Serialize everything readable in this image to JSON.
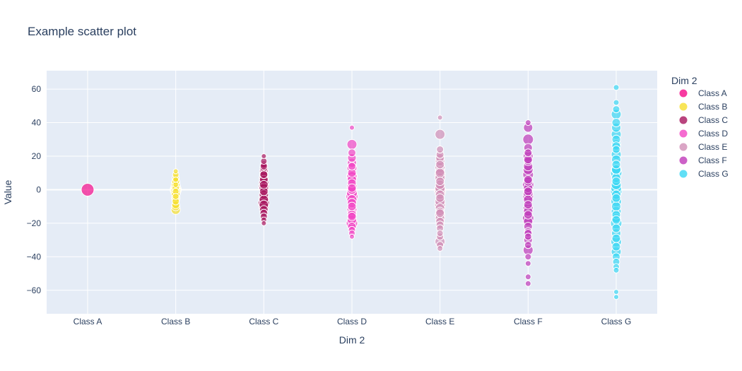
{
  "chart_data": {
    "type": "scatter",
    "title": "Example scatter plot",
    "xlabel": "Dim 2",
    "ylabel": "Value",
    "categories": [
      "Class A",
      "Class B",
      "Class C",
      "Class D",
      "Class E",
      "Class F",
      "Class G"
    ],
    "ylim": [
      -74,
      71
    ],
    "yticks": [
      {
        "value": 60,
        "label": "60"
      },
      {
        "value": 40,
        "label": "40"
      },
      {
        "value": 20,
        "label": "20"
      },
      {
        "value": 0,
        "label": "0"
      },
      {
        "value": -20,
        "label": "−20"
      },
      {
        "value": -40,
        "label": "−40"
      },
      {
        "value": -60,
        "label": "−60"
      }
    ],
    "grid": true,
    "background_color": "#e5ecf6",
    "legend": {
      "title": "Dim 2",
      "placement": "right"
    },
    "series": [
      {
        "name": "Class A",
        "color": "#f50a8a",
        "values": [
          0
        ],
        "sizes": [
          18
        ]
      },
      {
        "name": "Class B",
        "color": "#f6df2e",
        "values": [
          11,
          9,
          7,
          5,
          4,
          3,
          2,
          1,
          0,
          0,
          -1,
          -2,
          -3,
          -5,
          -6,
          -7,
          -9,
          -10,
          -12,
          1,
          -1,
          3,
          -4,
          6
        ],
        "sizes": [
          7,
          9,
          10,
          11,
          12,
          12,
          13,
          14,
          15,
          16,
          14,
          13,
          12,
          12,
          11,
          10,
          11,
          12,
          13,
          10,
          9,
          8,
          9,
          8
        ]
      },
      {
        "name": "Class C",
        "color": "#a8155e",
        "values": [
          20,
          17,
          15,
          13,
          11,
          9,
          7,
          6,
          4,
          2,
          1,
          -1,
          -3,
          -5,
          -6,
          -8,
          -10,
          -12,
          -14,
          -16,
          -18,
          -20,
          14,
          3,
          -9,
          9
        ],
        "sizes": [
          7,
          9,
          10,
          11,
          12,
          12,
          13,
          12,
          14,
          15,
          13,
          12,
          13,
          14,
          13,
          16,
          14,
          12,
          11,
          10,
          8,
          7,
          10,
          12,
          13,
          11
        ]
      },
      {
        "name": "Class D",
        "color": "#f246c4",
        "values": [
          37,
          27,
          22,
          19,
          16,
          13,
          10,
          8,
          6,
          4,
          2,
          0,
          -2,
          -4,
          -6,
          -8,
          -10,
          -12,
          -14,
          -16,
          -18,
          -20,
          -22,
          -24,
          -26,
          -28,
          14,
          1,
          -15,
          8
        ],
        "sizes": [
          7,
          14,
          11,
          12,
          13,
          14,
          12,
          15,
          13,
          12,
          14,
          13,
          15,
          17,
          14,
          13,
          12,
          14,
          13,
          12,
          13,
          16,
          12,
          10,
          9,
          7,
          11,
          12,
          13,
          14
        ]
      },
      {
        "name": "Class E",
        "color": "#d18fb7",
        "values": [
          43,
          33,
          24,
          21,
          19,
          17,
          15,
          13,
          11,
          9,
          7,
          5,
          3,
          1,
          -1,
          -3,
          -5,
          -7,
          -9,
          -11,
          -13,
          -15,
          -17,
          -19,
          -21,
          -23,
          -26,
          -28,
          -31,
          -33,
          -35,
          0,
          -14,
          10
        ],
        "sizes": [
          7,
          14,
          10,
          11,
          12,
          13,
          12,
          14,
          13,
          15,
          14,
          12,
          13,
          14,
          16,
          13,
          12,
          14,
          15,
          13,
          12,
          14,
          13,
          12,
          11,
          10,
          9,
          10,
          14,
          10,
          8,
          15,
          12,
          13
        ]
      },
      {
        "name": "Class F",
        "color": "#bf3ab9",
        "values": [
          40,
          37,
          30,
          25,
          22,
          20,
          17,
          14,
          12,
          9,
          6,
          3,
          1,
          -1,
          -4,
          -6,
          -9,
          -11,
          -13,
          -15,
          -17,
          -19,
          -22,
          -25,
          -28,
          -30,
          -33,
          -36,
          -40,
          -44,
          -52,
          -56,
          5,
          -2,
          18,
          -26
        ],
        "sizes": [
          8,
          13,
          15,
          12,
          11,
          14,
          12,
          13,
          14,
          15,
          12,
          16,
          13,
          12,
          15,
          13,
          12,
          14,
          13,
          12,
          16,
          13,
          12,
          11,
          10,
          12,
          10,
          14,
          9,
          8,
          8,
          8,
          13,
          14,
          12,
          11
        ]
      },
      {
        "name": "Class G",
        "color": "#3ad7f4",
        "values": [
          61,
          52,
          48,
          45,
          40,
          37,
          33,
          30,
          27,
          24,
          21,
          18,
          15,
          12,
          10,
          7,
          5,
          3,
          1,
          -1,
          -3,
          -5,
          -7,
          -10,
          -13,
          -15,
          -17,
          -20,
          -23,
          -26,
          -29,
          -31,
          -34,
          -37,
          -40,
          -43,
          -46,
          -48,
          -61,
          -64,
          26,
          12,
          -18
        ],
        "sizes": [
          8,
          8,
          10,
          14,
          12,
          13,
          14,
          12,
          13,
          11,
          14,
          13,
          12,
          14,
          16,
          13,
          12,
          14,
          15,
          16,
          13,
          12,
          15,
          13,
          14,
          12,
          13,
          16,
          12,
          13,
          12,
          15,
          12,
          14,
          11,
          10,
          9,
          8,
          7,
          7,
          12,
          13,
          12
        ]
      }
    ]
  }
}
